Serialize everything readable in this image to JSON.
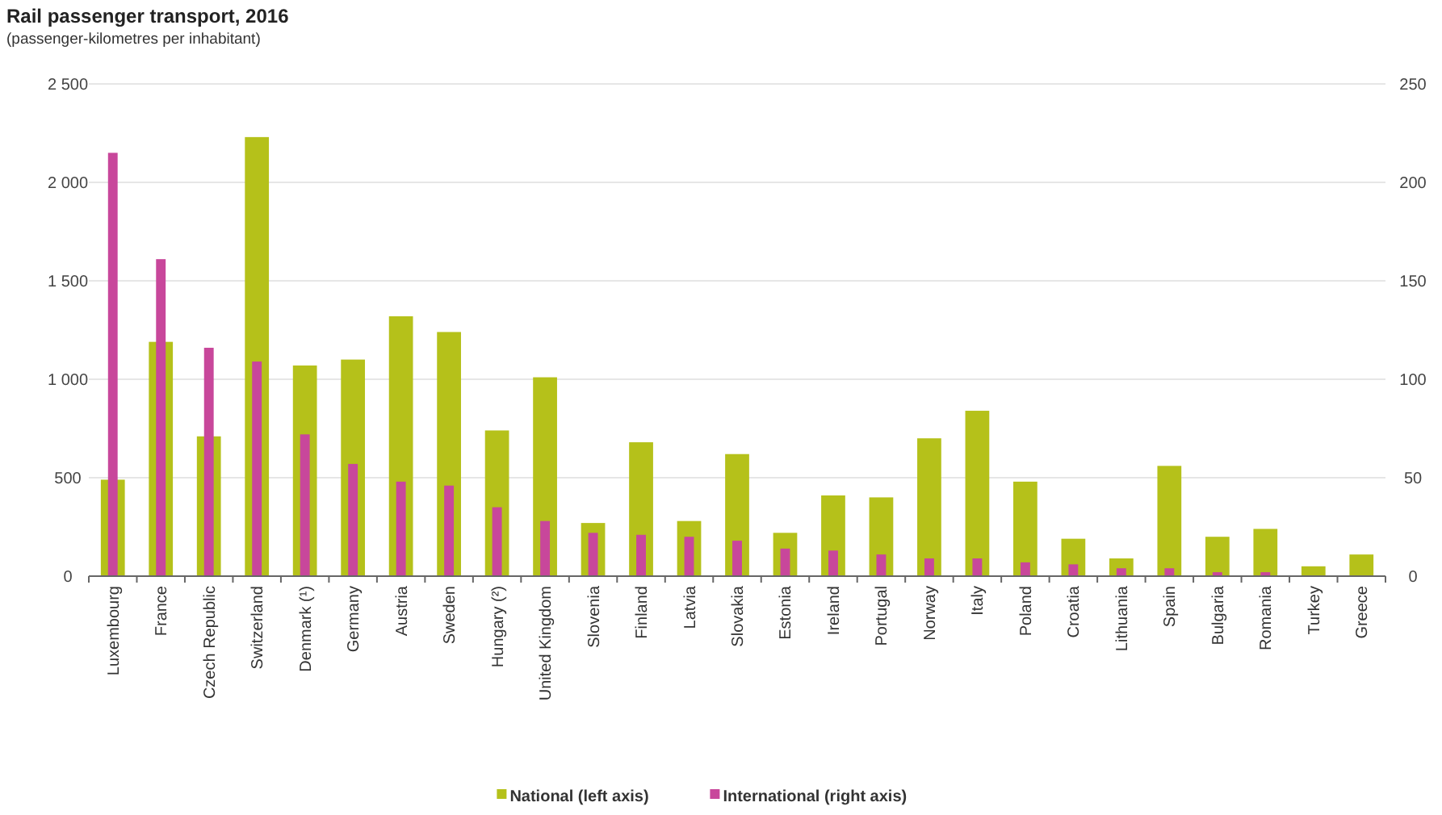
{
  "chart_data": {
    "type": "bar",
    "title": "Rail passenger transport, 2016",
    "subtitle": "(passenger-kilometres per inhabitant)",
    "categories": [
      "Luxembourg",
      "France",
      "Czech Republic",
      "Switzerland",
      "Denmark (¹)",
      "Germany",
      "Austria",
      "Sweden",
      "Hungary (²)",
      "United Kingdom",
      "Slovenia",
      "Finland",
      "Latvia",
      "Slovakia",
      "Estonia",
      "Ireland",
      "Portugal",
      "Norway",
      "Italy",
      "Poland",
      "Croatia",
      "Lithuania",
      "Spain",
      "Bulgaria",
      "Romania",
      "Turkey",
      "Greece"
    ],
    "series": [
      {
        "name": "National (left axis)",
        "color": "#b5c11a",
        "values": [
          490,
          1190,
          710,
          2230,
          1070,
          1100,
          1320,
          1240,
          740,
          1010,
          270,
          680,
          280,
          620,
          220,
          410,
          400,
          700,
          840,
          480,
          190,
          90,
          560,
          200,
          240,
          50,
          110
        ]
      },
      {
        "name": "International (right axis)",
        "color": "#c8479b",
        "axis": "y2",
        "values": [
          215,
          161,
          116,
          109,
          72,
          57,
          48,
          46,
          35,
          28,
          22,
          21,
          20,
          18,
          14,
          13,
          11,
          9,
          9,
          7,
          6,
          4,
          4,
          2,
          2,
          null,
          0
        ]
      }
    ],
    "ylim": [
      0,
      2500
    ],
    "yticks": [
      {
        "value": 0,
        "label": "0"
      },
      {
        "value": 500,
        "label": "500"
      },
      {
        "value": 1000,
        "label": "1 000"
      },
      {
        "value": 1500,
        "label": "1 500"
      },
      {
        "value": 2000,
        "label": "2 000"
      },
      {
        "value": 2500,
        "label": "2 500"
      }
    ],
    "y2lim": [
      0,
      250
    ],
    "y2ticks": [
      0,
      50,
      100,
      150,
      200,
      250
    ],
    "grid": "y",
    "legend": "bottom"
  }
}
